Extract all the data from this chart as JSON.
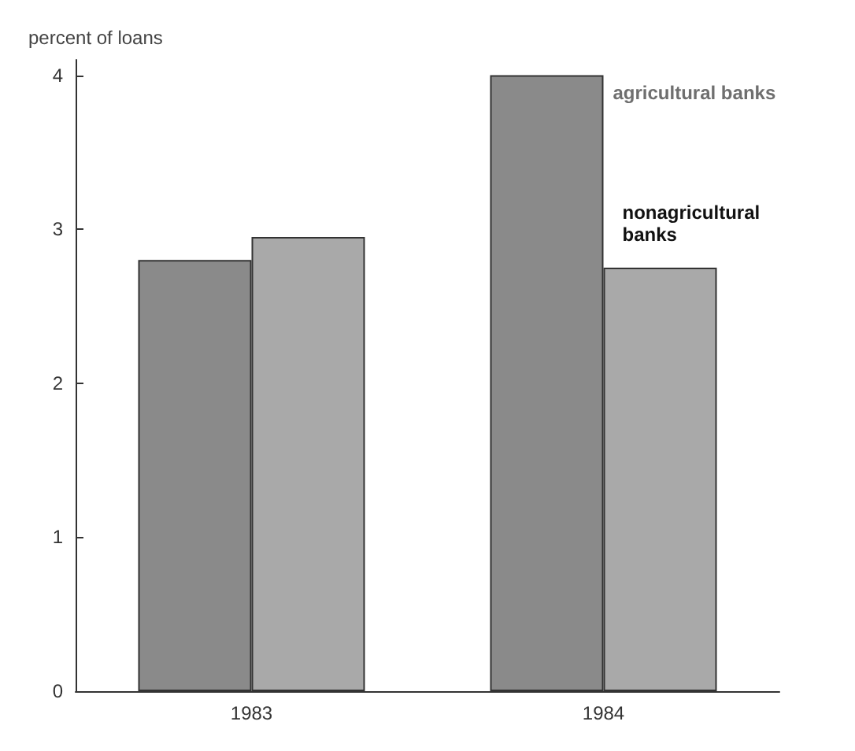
{
  "chart_data": {
    "type": "bar",
    "ylabel": "percent of loans",
    "categories": [
      "1983",
      "1984"
    ],
    "series": [
      {
        "name": "agricultural banks",
        "color": "#8a8a8a",
        "values": [
          2.8,
          4.0
        ]
      },
      {
        "name": "nonagricultural banks",
        "color": "#a9a9a9",
        "values": [
          2.95,
          2.75
        ]
      }
    ],
    "ylim": [
      0,
      4.1
    ],
    "yticks": [
      0,
      1,
      2,
      3,
      4
    ],
    "grid": false,
    "legend": false
  }
}
